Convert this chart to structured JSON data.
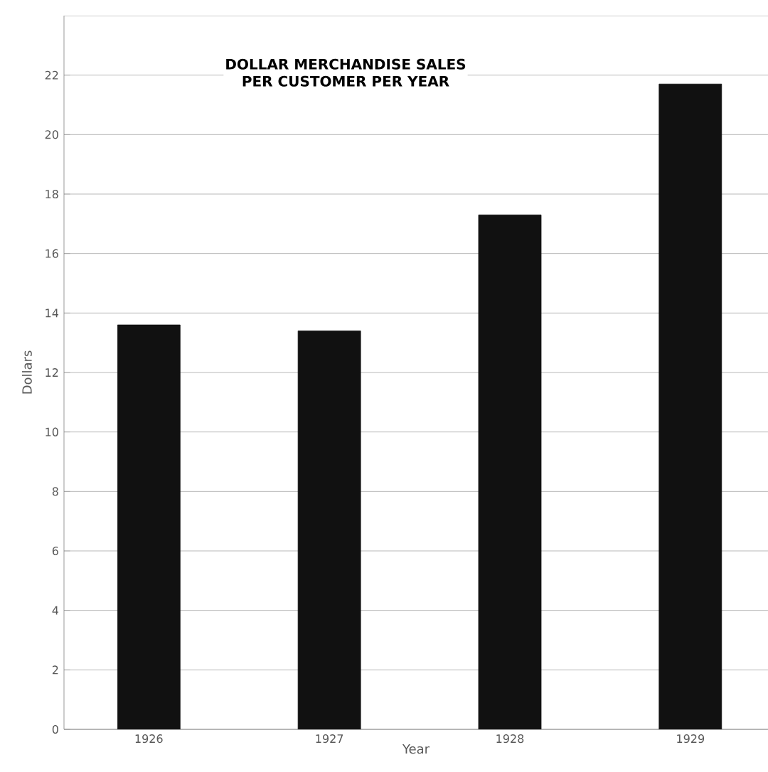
{
  "chart_data": {
    "type": "bar",
    "title": "DOLLAR MERCHANDISE SALES\nPER CUSTOMER PER YEAR",
    "xlabel": "Year",
    "ylabel": "Dollars",
    "categories": [
      "1926",
      "1927",
      "1928",
      "1929"
    ],
    "values": [
      13.6,
      13.4,
      17.3,
      21.7
    ],
    "color": "#111111",
    "ylim": [
      0,
      24
    ],
    "yticks": [
      0,
      2,
      4,
      6,
      8,
      10,
      12,
      14,
      16,
      18,
      20,
      22
    ],
    "grid": "y"
  }
}
